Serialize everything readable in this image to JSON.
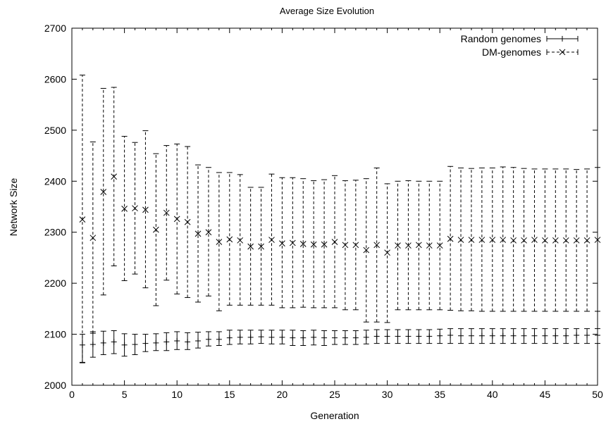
{
  "chart_data": {
    "type": "scatter",
    "title": "Average Size Evolution",
    "xlabel": "Generation",
    "ylabel": "Network Size",
    "xlim": [
      0,
      50
    ],
    "ylim": [
      2000,
      2700
    ],
    "x_ticks": [
      "0",
      "5",
      "10",
      "15",
      "20",
      "25",
      "30",
      "35",
      "40",
      "45",
      "50"
    ],
    "y_ticks": [
      "2000",
      "2100",
      "2200",
      "2300",
      "2400",
      "2500",
      "2600",
      "2700"
    ],
    "grid": false,
    "legend_position": "top-right",
    "series": [
      {
        "name": "Random genomes",
        "marker": "plus",
        "line_style": "solid",
        "x": [
          1,
          2,
          3,
          4,
          5,
          6,
          7,
          8,
          9,
          10,
          11,
          12,
          13,
          14,
          15,
          16,
          17,
          18,
          19,
          20,
          21,
          22,
          23,
          24,
          25,
          26,
          27,
          28,
          29,
          30,
          31,
          32,
          33,
          34,
          35,
          36,
          37,
          38,
          39,
          40,
          41,
          42,
          43,
          44,
          45,
          46,
          47,
          48,
          49,
          50
        ],
        "y": [
          2079,
          2080,
          2083,
          2085,
          2079,
          2080,
          2082,
          2083,
          2085,
          2087,
          2085,
          2087,
          2090,
          2090,
          2093,
          2094,
          2094,
          2095,
          2094,
          2094,
          2093,
          2093,
          2094,
          2093,
          2093,
          2093,
          2093,
          2094,
          2096,
          2096,
          2096,
          2096,
          2096,
          2096,
          2097,
          2098,
          2097,
          2097,
          2097,
          2097,
          2097,
          2097,
          2097,
          2097,
          2097,
          2097,
          2097,
          2098,
          2098,
          2098
        ],
        "err_low": [
          2045,
          2055,
          2060,
          2062,
          2057,
          2060,
          2066,
          2068,
          2068,
          2070,
          2070,
          2073,
          2077,
          2078,
          2080,
          2081,
          2081,
          2082,
          2081,
          2081,
          2078,
          2078,
          2079,
          2078,
          2080,
          2080,
          2080,
          2081,
          2082,
          2082,
          2082,
          2082,
          2082,
          2082,
          2082,
          2082,
          2082,
          2082,
          2082,
          2082,
          2082,
          2082,
          2082,
          2082,
          2082,
          2082,
          2082,
          2082,
          2082,
          2082
        ],
        "err_high": [
          2100,
          2105,
          2106,
          2107,
          2101,
          2100,
          2100,
          2101,
          2103,
          2105,
          2103,
          2104,
          2105,
          2105,
          2108,
          2108,
          2108,
          2108,
          2108,
          2108,
          2108,
          2107,
          2108,
          2107,
          2107,
          2107,
          2107,
          2108,
          2109,
          2109,
          2109,
          2109,
          2109,
          2109,
          2110,
          2111,
          2111,
          2111,
          2111,
          2111,
          2111,
          2111,
          2111,
          2111,
          2111,
          2111,
          2111,
          2111,
          2111,
          2111
        ]
      },
      {
        "name": "DM-genomes",
        "marker": "x",
        "line_style": "dashed",
        "x": [
          1,
          2,
          3,
          4,
          5,
          6,
          7,
          8,
          9,
          10,
          11,
          12,
          13,
          14,
          15,
          16,
          17,
          18,
          19,
          20,
          21,
          22,
          23,
          24,
          25,
          26,
          27,
          28,
          29,
          30,
          31,
          32,
          33,
          34,
          35,
          36,
          37,
          38,
          39,
          40,
          41,
          42,
          43,
          44,
          45,
          46,
          47,
          48,
          49,
          50
        ],
        "y": [
          2325,
          2289,
          2379,
          2409,
          2346,
          2347,
          2344,
          2305,
          2338,
          2326,
          2320,
          2297,
          2300,
          2281,
          2286,
          2284,
          2272,
          2272,
          2285,
          2278,
          2279,
          2277,
          2276,
          2276,
          2281,
          2275,
          2275,
          2265,
          2275,
          2260,
          2274,
          2274,
          2275,
          2274,
          2274,
          2287,
          2285,
          2285,
          2285,
          2285,
          2285,
          2284,
          2284,
          2285,
          2284,
          2284,
          2284,
          2284,
          2284,
          2285
        ],
        "err_low": [
          2044,
          2102,
          2177,
          2234,
          2205,
          2218,
          2191,
          2156,
          2206,
          2179,
          2172,
          2163,
          2175,
          2146,
          2157,
          2157,
          2157,
          2157,
          2157,
          2152,
          2152,
          2153,
          2152,
          2152,
          2152,
          2148,
          2148,
          2124,
          2124,
          2123,
          2148,
          2148,
          2148,
          2148,
          2148,
          2147,
          2146,
          2146,
          2145,
          2145,
          2145,
          2145,
          2145,
          2145,
          2145,
          2145,
          2145,
          2145,
          2145,
          2145
        ],
        "err_high": [
          2608,
          2477,
          2582,
          2584,
          2488,
          2476,
          2499,
          2454,
          2470,
          2473,
          2468,
          2432,
          2427,
          2417,
          2417,
          2413,
          2388,
          2388,
          2414,
          2407,
          2407,
          2405,
          2401,
          2403,
          2411,
          2401,
          2402,
          2405,
          2426,
          2395,
          2400,
          2401,
          2400,
          2400,
          2400,
          2429,
          2426,
          2425,
          2426,
          2426,
          2428,
          2427,
          2425,
          2424,
          2424,
          2424,
          2424,
          2423,
          2424,
          2427
        ]
      }
    ]
  }
}
